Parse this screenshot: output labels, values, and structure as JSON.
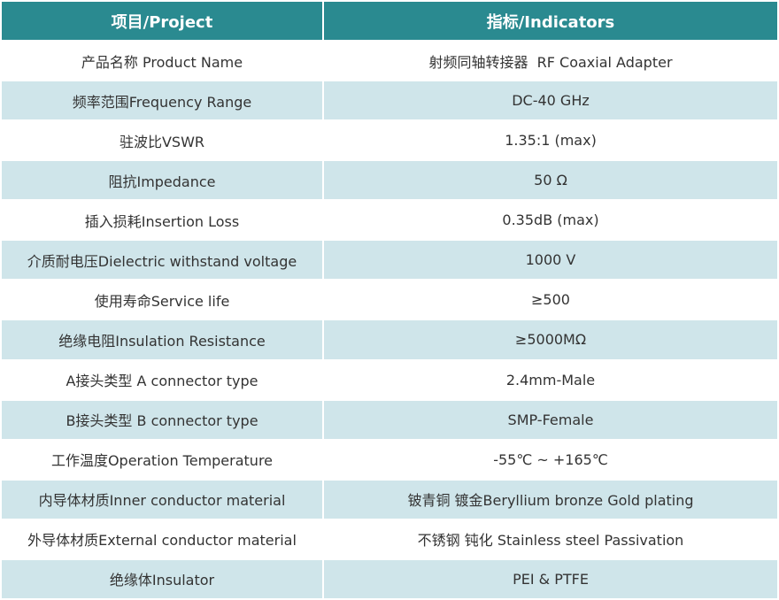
{
  "table": {
    "header": [
      "项目/Project",
      "指标/Indicators"
    ],
    "rows": [
      [
        "产品名称 Product Name",
        "射频同轴转接器  RF Coaxial Adapter"
      ],
      [
        "频率范围Frequency Range",
        "DC-40 GHz"
      ],
      [
        "驻波比VSWR",
        "1.35:1 (max)"
      ],
      [
        "阻抗Impedance",
        "50 Ω"
      ],
      [
        "插入损耗Insertion Loss",
        "0.35dB (max)"
      ],
      [
        "介质耐电压Dielectric withstand voltage",
        "1000 V"
      ],
      [
        "使用寿命Service life",
        "≥500"
      ],
      [
        "绝缘电阻Insulation Resistance",
        "≥5000MΩ"
      ],
      [
        "A接头类型 A connector type",
        "2.4mm-Male"
      ],
      [
        "B接头类型 B connector type",
        "SMP-Female"
      ],
      [
        "工作温度Operation Temperature",
        "-55℃ ~ +165℃"
      ],
      [
        "内导体材质Inner conductor material",
        "铍青铜 镀金Beryllium bronze Gold plating"
      ],
      [
        "外导体材质External conductor material",
        "不锈钢 钝化 Stainless steel Passivation"
      ],
      [
        "绝缘体Insulator",
        "PEI & PTFE"
      ]
    ]
  }
}
